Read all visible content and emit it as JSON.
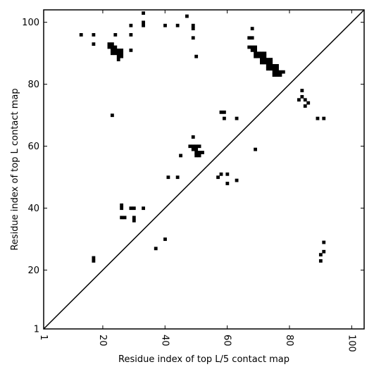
{
  "chart_data": {
    "type": "heatmap",
    "title": "",
    "xlabel": "Residue index of top L/5 contact map",
    "ylabel": "Residue index of top L contact map",
    "xlim": [
      1,
      104
    ],
    "ylim": [
      1,
      104
    ],
    "x_ticks": [
      1,
      20,
      40,
      60,
      80,
      100
    ],
    "y_ticks": [
      1,
      20,
      40,
      60,
      80,
      100
    ],
    "x_tick_rotation_deg": -90,
    "grid": false,
    "diagonal": true,
    "mark_color": "#000000",
    "contacts": [
      [
        33,
        103
      ],
      [
        47,
        102
      ],
      [
        33,
        100
      ],
      [
        33,
        99
      ],
      [
        40,
        99
      ],
      [
        44,
        99
      ],
      [
        49,
        99
      ],
      [
        49,
        98
      ],
      [
        68,
        98
      ],
      [
        29,
        99
      ],
      [
        13,
        96
      ],
      [
        17,
        96
      ],
      [
        24,
        96
      ],
      [
        29,
        96
      ],
      [
        49,
        95
      ],
      [
        67,
        95
      ],
      [
        68,
        95
      ],
      [
        17,
        93
      ],
      [
        22,
        93
      ],
      [
        23,
        93
      ],
      [
        22,
        92
      ],
      [
        23,
        92
      ],
      [
        24,
        92
      ],
      [
        67,
        92
      ],
      [
        68,
        92
      ],
      [
        69,
        92
      ],
      [
        23,
        91
      ],
      [
        24,
        91
      ],
      [
        25,
        91
      ],
      [
        26,
        91
      ],
      [
        29,
        91
      ],
      [
        68,
        91
      ],
      [
        69,
        91
      ],
      [
        23,
        90
      ],
      [
        24,
        90
      ],
      [
        25,
        90
      ],
      [
        26,
        90
      ],
      [
        69,
        90
      ],
      [
        70,
        90
      ],
      [
        71,
        90
      ],
      [
        72,
        90
      ],
      [
        25,
        89
      ],
      [
        26,
        89
      ],
      [
        50,
        89
      ],
      [
        69,
        89
      ],
      [
        70,
        89
      ],
      [
        71,
        89
      ],
      [
        72,
        89
      ],
      [
        25,
        88
      ],
      [
        71,
        88
      ],
      [
        72,
        88
      ],
      [
        73,
        88
      ],
      [
        74,
        88
      ],
      [
        71,
        87
      ],
      [
        72,
        87
      ],
      [
        73,
        87
      ],
      [
        74,
        87
      ],
      [
        73,
        86
      ],
      [
        74,
        86
      ],
      [
        75,
        86
      ],
      [
        76,
        86
      ],
      [
        73,
        85
      ],
      [
        74,
        85
      ],
      [
        75,
        85
      ],
      [
        76,
        85
      ],
      [
        75,
        84
      ],
      [
        76,
        84
      ],
      [
        77,
        84
      ],
      [
        78,
        84
      ],
      [
        75,
        83
      ],
      [
        76,
        83
      ],
      [
        77,
        83
      ],
      [
        84,
        78
      ],
      [
        84,
        76
      ],
      [
        83,
        75
      ],
      [
        85,
        75
      ],
      [
        86,
        74
      ],
      [
        85,
        73
      ],
      [
        58,
        71
      ],
      [
        59,
        71
      ],
      [
        23,
        70
      ],
      [
        59,
        69
      ],
      [
        63,
        69
      ],
      [
        89,
        69
      ],
      [
        91,
        69
      ],
      [
        49,
        63
      ],
      [
        48,
        60
      ],
      [
        49,
        60
      ],
      [
        50,
        60
      ],
      [
        51,
        60
      ],
      [
        49,
        59
      ],
      [
        50,
        59
      ],
      [
        69,
        59
      ],
      [
        50,
        58
      ],
      [
        51,
        58
      ],
      [
        52,
        58
      ],
      [
        45,
        57
      ],
      [
        50,
        57
      ],
      [
        51,
        57
      ],
      [
        58,
        51
      ],
      [
        60,
        51
      ],
      [
        41,
        50
      ],
      [
        44,
        50
      ],
      [
        57,
        50
      ],
      [
        63,
        49
      ],
      [
        60,
        48
      ],
      [
        26,
        41
      ],
      [
        26,
        40
      ],
      [
        29,
        40
      ],
      [
        30,
        40
      ],
      [
        33,
        40
      ],
      [
        26,
        37
      ],
      [
        27,
        37
      ],
      [
        30,
        37
      ],
      [
        30,
        36
      ],
      [
        40,
        30
      ],
      [
        91,
        29
      ],
      [
        37,
        27
      ],
      [
        91,
        26
      ],
      [
        90,
        25
      ],
      [
        17,
        24
      ],
      [
        17,
        23
      ],
      [
        90,
        23
      ]
    ]
  }
}
